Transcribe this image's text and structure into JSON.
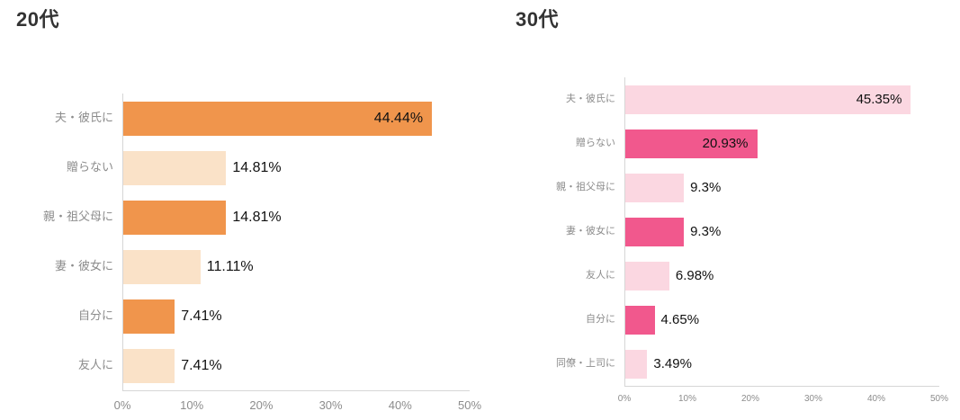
{
  "page": {
    "background": "#ffffff"
  },
  "chart_data": [
    {
      "type": "bar",
      "orientation": "horizontal",
      "title": "20代",
      "categories": [
        "夫・彼氏に",
        "贈らない",
        "親・祖父母に",
        "妻・彼女に",
        "自分に",
        "友人に"
      ],
      "values": [
        44.44,
        14.81,
        14.81,
        11.11,
        7.41,
        7.41
      ],
      "value_labels": [
        "44.44%",
        "14.81%",
        "14.81%",
        "11.11%",
        "7.41%",
        "7.41%"
      ],
      "colors": [
        "#F0954C",
        "#FAE2C8",
        "#F0954C",
        "#FAE2C8",
        "#F0954C",
        "#FAE2C8"
      ],
      "xlim": [
        0,
        50
      ],
      "x_ticks": [
        "0%",
        "10%",
        "20%",
        "30%",
        "40%",
        "50%"
      ],
      "grid": false,
      "legend": "none"
    },
    {
      "type": "bar",
      "orientation": "horizontal",
      "title": "30代",
      "categories": [
        "夫・彼氏に",
        "贈らない",
        "親・祖父母に",
        "妻・彼女に",
        "友人に",
        "自分に",
        "同僚・上司に"
      ],
      "values": [
        45.35,
        20.93,
        9.3,
        9.3,
        6.98,
        4.65,
        3.49
      ],
      "value_labels": [
        "45.35%",
        "20.93%",
        "9.3%",
        "9.3%",
        "6.98%",
        "4.65%",
        "3.49%"
      ],
      "colors": [
        "#FBD7E1",
        "#F1588D",
        "#FBD7E1",
        "#F1588D",
        "#FBD7E1",
        "#F1588D",
        "#FBD7E1"
      ],
      "xlim": [
        0,
        50
      ],
      "x_ticks": [
        "0%",
        "10%",
        "20%",
        "30%",
        "40%",
        "50%"
      ],
      "grid": false,
      "legend": "none"
    }
  ]
}
